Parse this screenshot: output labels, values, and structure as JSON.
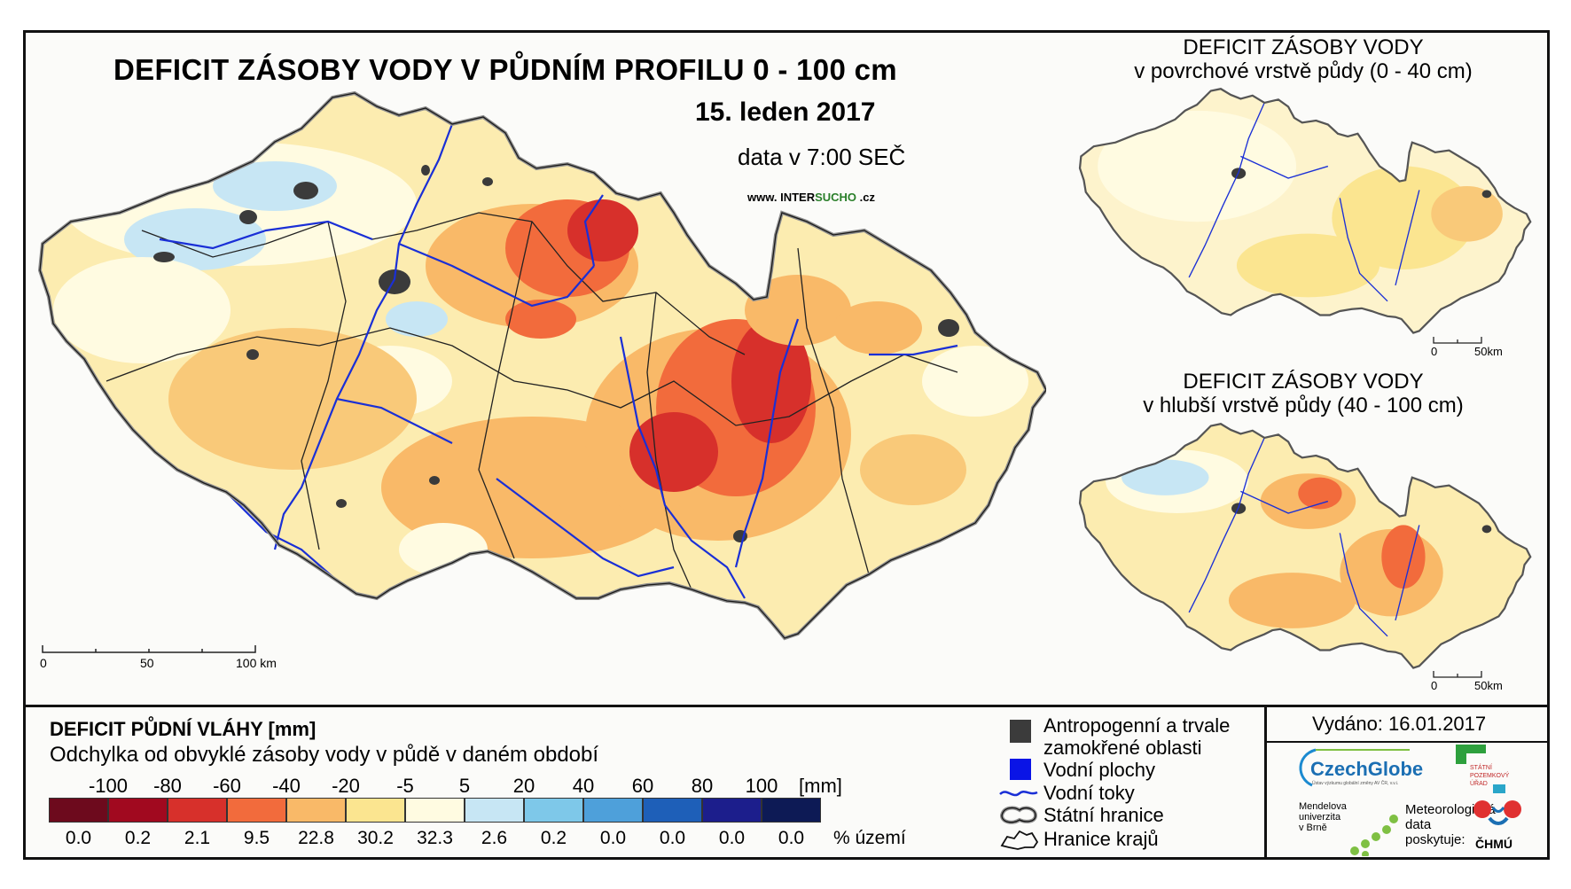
{
  "main_map": {
    "title": "DEFICIT ZÁSOBY VODY V PŮDNÍM PROFILU 0 - 100 cm",
    "date": "15. leden 2017",
    "data_time": "data v 7:00 SEČ",
    "website_prefix": "www. INTER",
    "website_highlight": "SUCHO",
    "website_suffix": " .cz",
    "scale": [
      "0",
      "50",
      "100 km"
    ]
  },
  "inset_top": {
    "title_line1": "DEFICIT ZÁSOBY VODY",
    "title_line2": "v povrchové vrstvě půdy (0 - 40 cm)",
    "scale": [
      "0",
      "50km"
    ]
  },
  "inset_bottom": {
    "title_line1": "DEFICIT ZÁSOBY VODY",
    "title_line2": "v hlubší vrstvě půdy (40 - 100 cm)",
    "scale": [
      "0",
      "50km"
    ]
  },
  "legend": {
    "title": "DEFICIT PŮDNÍ VLÁHY [mm]",
    "subtitle": "Odchylka od obvyklé zásoby vody v půdě v daném období",
    "unit": "[mm]",
    "percent_label": "% území",
    "ticks": [
      "-100",
      "-80",
      "-60",
      "-40",
      "-20",
      "-5",
      "5",
      "20",
      "40",
      "60",
      "80",
      "100"
    ],
    "classes": [
      {
        "color": "#6d0a1d",
        "percent": "0.0"
      },
      {
        "color": "#a1091f",
        "percent": "0.2"
      },
      {
        "color": "#d7302b",
        "percent": "2.1"
      },
      {
        "color": "#f26b3c",
        "percent": "9.5"
      },
      {
        "color": "#f9b968",
        "percent": "22.8"
      },
      {
        "color": "#fbe590",
        "percent": "30.2"
      },
      {
        "color": "#fffbe1",
        "percent": "32.3"
      },
      {
        "color": "#c7e6f4",
        "percent": "2.6"
      },
      {
        "color": "#7ec8e9",
        "percent": "0.2"
      },
      {
        "color": "#4ea0da",
        "percent": "0.0"
      },
      {
        "color": "#1e5fb8",
        "percent": "0.0"
      },
      {
        "color": "#1c1e8c",
        "percent": "0.0"
      },
      {
        "color": "#0d1a55",
        "percent": "0.0"
      }
    ]
  },
  "symbols": [
    {
      "icon": "dark-square-icon",
      "label_line1": "Antropogenní a trvale",
      "label_line2": "zamokřené oblasti"
    },
    {
      "icon": "blue-square-icon",
      "label_line1": "Vodní plochy"
    },
    {
      "icon": "river-line-icon",
      "label_line1": "Vodní toky"
    },
    {
      "icon": "state-border-icon",
      "label_line1": "Státní hranice"
    },
    {
      "icon": "region-border-icon",
      "label_line1": "Hranice krajů"
    }
  ],
  "issued": "Vydáno: 16.01.2017",
  "logos": {
    "czechglobe": "CzechGlobe",
    "czechglobe_sub": "Ústav výzkumu globální změny AV ČR, v.v.i.",
    "spu_line1": "STÁTNÍ",
    "spu_line2": "POZEMKOVÝ",
    "spu_line3": "ÚŘAD",
    "mendel_line1": "Mendelova",
    "mendel_line2": "univerzita",
    "mendel_line3": "v Brně",
    "meteo_line1": "Meteorologická",
    "meteo_line2": "data",
    "meteo_line3": "poskytuje:",
    "chmu": "ČHMÚ"
  },
  "colors": {
    "river": "#1a2fd6",
    "urban": "#3b3b3b",
    "water_body": "#0a14e6"
  }
}
